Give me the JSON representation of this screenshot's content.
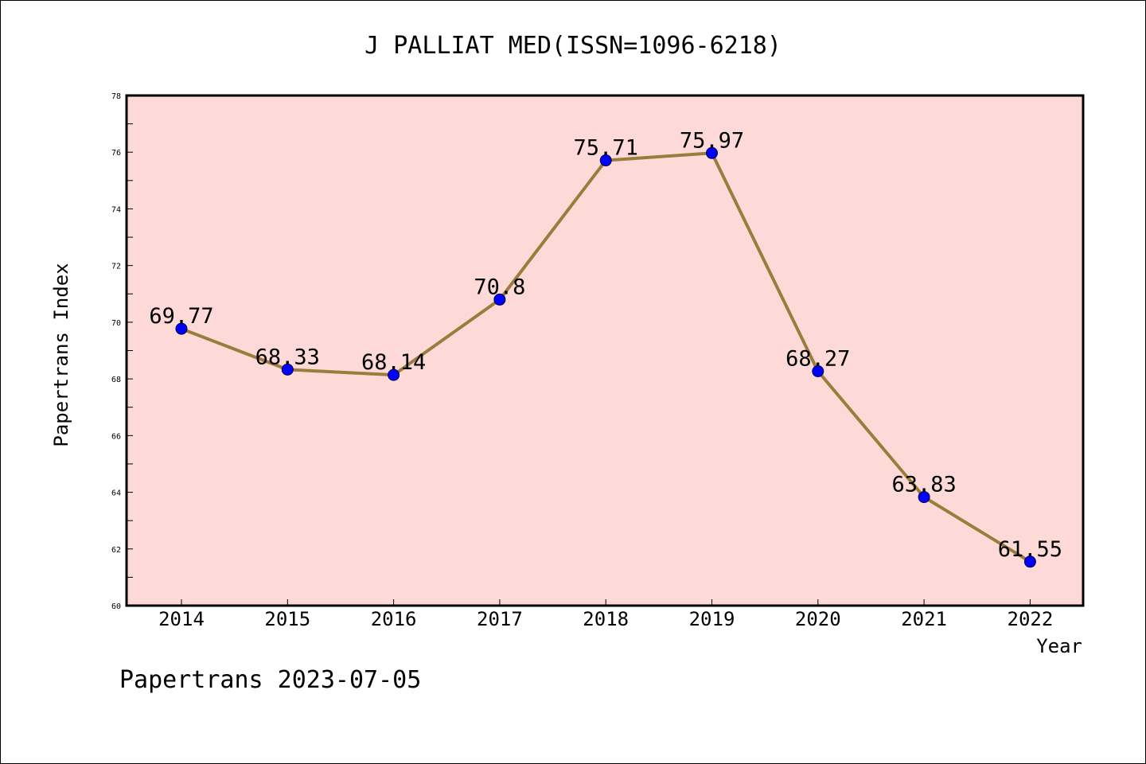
{
  "chart_data": {
    "type": "line",
    "title": "J PALLIAT MED(ISSN=1096-6218)",
    "xlabel": "Year",
    "ylabel": "Papertrans Index",
    "categories": [
      "2014",
      "2015",
      "2016",
      "2017",
      "2018",
      "2019",
      "2020",
      "2021",
      "2022"
    ],
    "values": [
      69.77,
      68.33,
      68.14,
      70.8,
      75.71,
      75.97,
      68.27,
      63.83,
      61.55
    ],
    "data_labels": [
      "69.77",
      "68.33",
      "68.14",
      "70.8",
      "75.71",
      "75.97",
      "68.27",
      "63.83",
      "61.55"
    ],
    "ylim": [
      60,
      78
    ],
    "yticks": [
      "60",
      "62",
      "64",
      "66",
      "68",
      "70",
      "72",
      "74",
      "76",
      "78"
    ],
    "grid": false,
    "colors": {
      "plot_background": "#fddad7",
      "line": "#9a7d3c",
      "marker": "#0000ff"
    }
  },
  "footer": {
    "text": "Papertrans 2023-07-05"
  }
}
